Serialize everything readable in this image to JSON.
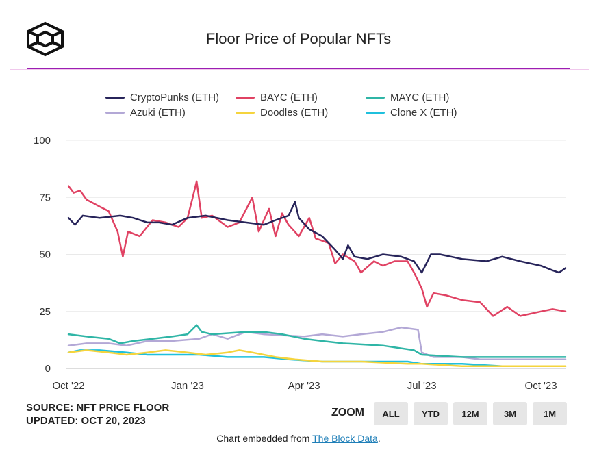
{
  "header": {
    "logo": "the-block-cube-logo",
    "title": "Floor Price of Popular NFTs"
  },
  "footer": {
    "source": "SOURCE: NFT PRICE FLOOR",
    "updated": "UPDATED: OCT 20, 2023",
    "zoom_label": "ZOOM",
    "zoom_buttons": [
      "ALL",
      "YTD",
      "12M",
      "3M",
      "1M"
    ],
    "embed_prefix": "Chart embedded from ",
    "embed_link": "The Block Data",
    "embed_suffix": "."
  },
  "chart_data": {
    "type": "line",
    "title": "Floor Price of Popular NFTs",
    "xlabel": "",
    "ylabel": "",
    "x_range": [
      "2022-10-01",
      "2023-10-20"
    ],
    "ylim": [
      0,
      100
    ],
    "yticks": [
      0,
      25,
      50,
      75,
      100
    ],
    "xticks": [
      {
        "date": "2022-10-01",
        "label": "Oct '22"
      },
      {
        "date": "2023-01-01",
        "label": "Jan '23"
      },
      {
        "date": "2023-04-01",
        "label": "Apr '23"
      },
      {
        "date": "2023-07-01",
        "label": "Jul '23"
      },
      {
        "date": "2023-10-01",
        "label": "Oct '23"
      }
    ],
    "grid": "horizontal",
    "legend_position": "top",
    "series": [
      {
        "name": "CryptoPunks (ETH)",
        "color": "#27245a",
        "points": [
          [
            "2022-10-01",
            66
          ],
          [
            "2022-10-06",
            63
          ],
          [
            "2022-10-12",
            67
          ],
          [
            "2022-10-25",
            66
          ],
          [
            "2022-11-10",
            67
          ],
          [
            "2022-11-20",
            66
          ],
          [
            "2022-12-01",
            64
          ],
          [
            "2022-12-10",
            64
          ],
          [
            "2022-12-20",
            63
          ],
          [
            "2023-01-01",
            66
          ],
          [
            "2023-01-15",
            67
          ],
          [
            "2023-02-01",
            65
          ],
          [
            "2023-02-15",
            64
          ],
          [
            "2023-03-01",
            63
          ],
          [
            "2023-03-10",
            65
          ],
          [
            "2023-03-20",
            67
          ],
          [
            "2023-03-25",
            73
          ],
          [
            "2023-03-28",
            66
          ],
          [
            "2023-04-05",
            61
          ],
          [
            "2023-04-15",
            58
          ],
          [
            "2023-04-25",
            52
          ],
          [
            "2023-05-01",
            48
          ],
          [
            "2023-05-05",
            54
          ],
          [
            "2023-05-10",
            49
          ],
          [
            "2023-05-20",
            48
          ],
          [
            "2023-06-01",
            50
          ],
          [
            "2023-06-15",
            49
          ],
          [
            "2023-06-25",
            47
          ],
          [
            "2023-07-01",
            42
          ],
          [
            "2023-07-08",
            50
          ],
          [
            "2023-07-15",
            50
          ],
          [
            "2023-08-01",
            48
          ],
          [
            "2023-08-20",
            47
          ],
          [
            "2023-09-01",
            49
          ],
          [
            "2023-09-15",
            47
          ],
          [
            "2023-10-01",
            45
          ],
          [
            "2023-10-10",
            43
          ],
          [
            "2023-10-15",
            42
          ],
          [
            "2023-10-20",
            44
          ]
        ]
      },
      {
        "name": "BAYC (ETH)",
        "color": "#e04263",
        "points": [
          [
            "2022-10-01",
            80
          ],
          [
            "2022-10-05",
            77
          ],
          [
            "2022-10-10",
            78
          ],
          [
            "2022-10-15",
            74
          ],
          [
            "2022-10-25",
            71
          ],
          [
            "2022-11-01",
            69
          ],
          [
            "2022-11-08",
            60
          ],
          [
            "2022-11-12",
            49
          ],
          [
            "2022-11-16",
            60
          ],
          [
            "2022-11-25",
            58
          ],
          [
            "2022-12-05",
            65
          ],
          [
            "2022-12-15",
            64
          ],
          [
            "2022-12-25",
            62
          ],
          [
            "2023-01-01",
            66
          ],
          [
            "2023-01-05",
            75
          ],
          [
            "2023-01-08",
            82
          ],
          [
            "2023-01-12",
            66
          ],
          [
            "2023-01-20",
            67
          ],
          [
            "2023-02-01",
            62
          ],
          [
            "2023-02-10",
            64
          ],
          [
            "2023-02-20",
            75
          ],
          [
            "2023-02-25",
            60
          ],
          [
            "2023-03-05",
            70
          ],
          [
            "2023-03-10",
            58
          ],
          [
            "2023-03-15",
            68
          ],
          [
            "2023-03-20",
            63
          ],
          [
            "2023-03-28",
            58
          ],
          [
            "2023-04-05",
            66
          ],
          [
            "2023-04-10",
            57
          ],
          [
            "2023-04-20",
            55
          ],
          [
            "2023-04-25",
            46
          ],
          [
            "2023-05-01",
            50
          ],
          [
            "2023-05-10",
            47
          ],
          [
            "2023-05-15",
            42
          ],
          [
            "2023-05-25",
            47
          ],
          [
            "2023-06-01",
            45
          ],
          [
            "2023-06-10",
            47
          ],
          [
            "2023-06-20",
            47
          ],
          [
            "2023-06-25",
            42
          ],
          [
            "2023-07-01",
            35
          ],
          [
            "2023-07-05",
            27
          ],
          [
            "2023-07-10",
            33
          ],
          [
            "2023-07-20",
            32
          ],
          [
            "2023-08-01",
            30
          ],
          [
            "2023-08-15",
            29
          ],
          [
            "2023-08-25",
            23
          ],
          [
            "2023-09-05",
            27
          ],
          [
            "2023-09-15",
            23
          ],
          [
            "2023-10-01",
            25
          ],
          [
            "2023-10-10",
            26
          ],
          [
            "2023-10-20",
            25
          ]
        ]
      },
      {
        "name": "MAYC (ETH)",
        "color": "#2fb5a6",
        "points": [
          [
            "2022-10-01",
            15
          ],
          [
            "2022-10-15",
            14
          ],
          [
            "2022-11-01",
            13
          ],
          [
            "2022-11-10",
            11
          ],
          [
            "2022-11-20",
            12
          ],
          [
            "2022-12-05",
            13
          ],
          [
            "2022-12-20",
            14
          ],
          [
            "2023-01-01",
            15
          ],
          [
            "2023-01-08",
            19
          ],
          [
            "2023-01-12",
            16
          ],
          [
            "2023-01-20",
            15
          ],
          [
            "2023-02-15",
            16
          ],
          [
            "2023-03-01",
            16
          ],
          [
            "2023-03-15",
            15
          ],
          [
            "2023-04-01",
            13
          ],
          [
            "2023-04-15",
            12
          ],
          [
            "2023-05-01",
            11
          ],
          [
            "2023-06-01",
            10
          ],
          [
            "2023-06-25",
            8
          ],
          [
            "2023-07-01",
            6
          ],
          [
            "2023-08-01",
            5
          ],
          [
            "2023-09-01",
            5
          ],
          [
            "2023-10-20",
            5
          ]
        ]
      },
      {
        "name": "Azuki (ETH)",
        "color": "#b3a8d6",
        "points": [
          [
            "2022-10-01",
            10
          ],
          [
            "2022-10-15",
            11
          ],
          [
            "2022-11-01",
            11
          ],
          [
            "2022-11-15",
            10
          ],
          [
            "2022-12-01",
            12
          ],
          [
            "2022-12-20",
            12
          ],
          [
            "2023-01-10",
            13
          ],
          [
            "2023-01-20",
            15
          ],
          [
            "2023-02-01",
            13
          ],
          [
            "2023-02-15",
            16
          ],
          [
            "2023-03-01",
            15
          ],
          [
            "2023-04-01",
            14
          ],
          [
            "2023-04-15",
            15
          ],
          [
            "2023-05-01",
            14
          ],
          [
            "2023-05-15",
            15
          ],
          [
            "2023-06-01",
            16
          ],
          [
            "2023-06-15",
            18
          ],
          [
            "2023-06-28",
            17
          ],
          [
            "2023-07-01",
            7
          ],
          [
            "2023-07-10",
            5
          ],
          [
            "2023-08-01",
            5
          ],
          [
            "2023-08-15",
            4
          ],
          [
            "2023-09-01",
            4
          ],
          [
            "2023-10-20",
            4
          ]
        ]
      },
      {
        "name": "Doodles (ETH)",
        "color": "#f5d43d",
        "points": [
          [
            "2022-10-01",
            7
          ],
          [
            "2022-10-15",
            8
          ],
          [
            "2022-11-01",
            7
          ],
          [
            "2022-11-15",
            6
          ],
          [
            "2022-12-01",
            7
          ],
          [
            "2022-12-15",
            8
          ],
          [
            "2023-01-01",
            7
          ],
          [
            "2023-01-15",
            6
          ],
          [
            "2023-02-01",
            7
          ],
          [
            "2023-02-10",
            8
          ],
          [
            "2023-02-20",
            7
          ],
          [
            "2023-03-10",
            5
          ],
          [
            "2023-03-25",
            4
          ],
          [
            "2023-04-15",
            3
          ],
          [
            "2023-05-15",
            3
          ],
          [
            "2023-06-20",
            2
          ],
          [
            "2023-07-01",
            2
          ],
          [
            "2023-08-01",
            1
          ],
          [
            "2023-10-20",
            1
          ]
        ]
      },
      {
        "name": "Clone X (ETH)",
        "color": "#1fc0dd",
        "points": [
          [
            "2022-10-01",
            7
          ],
          [
            "2022-10-10",
            8
          ],
          [
            "2022-10-25",
            8
          ],
          [
            "2022-11-15",
            7
          ],
          [
            "2022-12-01",
            6
          ],
          [
            "2022-12-20",
            6
          ],
          [
            "2023-01-10",
            6
          ],
          [
            "2023-02-01",
            5
          ],
          [
            "2023-03-01",
            5
          ],
          [
            "2023-03-20",
            4
          ],
          [
            "2023-04-15",
            3
          ],
          [
            "2023-05-15",
            3
          ],
          [
            "2023-06-20",
            3
          ],
          [
            "2023-07-01",
            2
          ],
          [
            "2023-08-01",
            2
          ],
          [
            "2023-09-01",
            1
          ],
          [
            "2023-10-20",
            1
          ]
        ]
      }
    ]
  }
}
